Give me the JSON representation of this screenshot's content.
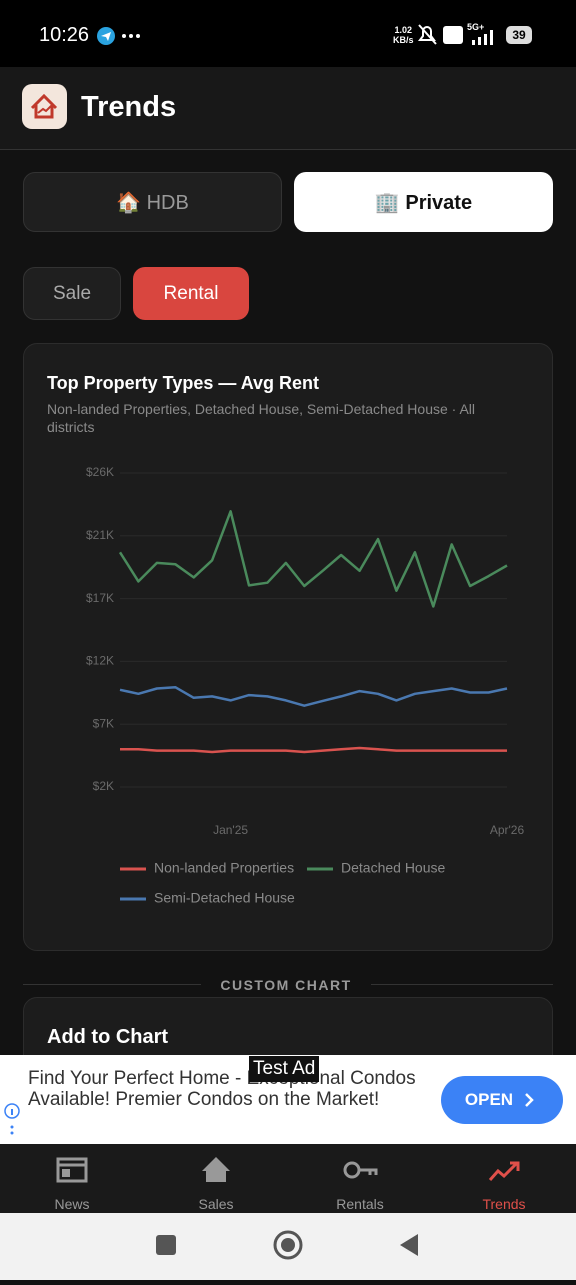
{
  "status_bar": {
    "time": "10:26",
    "speed": "1.02",
    "speed_unit": "KB/s",
    "network": "5G+",
    "battery": "39"
  },
  "header": {
    "title": "Trends"
  },
  "property_tabs": [
    "🏠 HDB",
    "🏢 Private"
  ],
  "mode_tabs": [
    "Sale",
    "Rental"
  ],
  "chart_data": {
    "type": "line",
    "title": "Top Property Types — Avg Rent",
    "subtitle": "Non-landed Properties, Detached House, Semi-Detached House · All districts",
    "categories": [
      null,
      null,
      null,
      null,
      null,
      null,
      "Jan'25",
      null,
      null,
      null,
      null,
      null,
      null,
      null,
      null,
      null,
      null,
      null,
      null,
      null,
      null,
      "Apr'26"
    ],
    "series": [
      {
        "name": "Non-landed Properties",
        "color": "#d9534f",
        "values": [
          5100,
          5100,
          5000,
          5000,
          5000,
          4900,
          5000,
          5000,
          5000,
          5000,
          4900,
          5000,
          5100,
          5200,
          5100,
          5000,
          5000,
          5000,
          5000,
          5000,
          5000,
          5000
        ]
      },
      {
        "name": "Detached House",
        "color": "#4a8a5c",
        "values": [
          20000,
          17800,
          19200,
          19100,
          18100,
          19400,
          23100,
          17500,
          17700,
          19200,
          17450,
          18600,
          19800,
          18600,
          21000,
          17100,
          20000,
          15900,
          20600,
          17450,
          18200,
          19000
        ]
      },
      {
        "name": "Semi-Detached House",
        "color": "#4a78b0",
        "values": [
          9600,
          9300,
          9700,
          9800,
          9000,
          9100,
          8800,
          9200,
          9100,
          8800,
          8400,
          8760,
          9100,
          9500,
          9300,
          8800,
          9300,
          9500,
          9700,
          9400,
          9400,
          9700
        ]
      }
    ],
    "ylim": [
      2250,
      26000
    ],
    "yticks": [
      {
        "value": 2250,
        "label": "$2K"
      },
      {
        "value": 7000,
        "label": "$7K"
      },
      {
        "value": 11750,
        "label": "$12K"
      },
      {
        "value": 16500,
        "label": "$17K"
      },
      {
        "value": 21250,
        "label": "$21K"
      },
      {
        "value": 26000,
        "label": "$26K"
      }
    ],
    "grid": true
  },
  "section": {
    "divider": "CUSTOM CHART",
    "card_title": "Add to Chart"
  },
  "ad": {
    "text": "Find Your Perfect Home - Exceptional Condos Available! Premier Condos on the Market!",
    "badge": "Test Ad",
    "button": "OPEN"
  },
  "nav": [
    "News",
    "Sales",
    "Rentals",
    "Trends"
  ]
}
